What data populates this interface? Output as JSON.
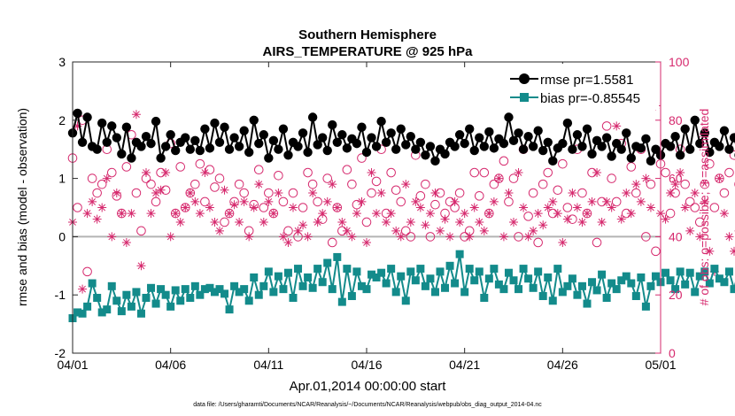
{
  "chart_data": {
    "type": "line",
    "title": [
      "Southern Hemisphere",
      "AIRS_TEMPERATURE @ 925 hPa"
    ],
    "xlabel": "Apr.01,2014 00:00:00 start",
    "ylabel_left": "rmse and bias (model - observation)",
    "ylabel_right": "# of obs: o=possible; ∗=assimilated",
    "footnote": "data file: /Users/gharamti/Documents/NCAR/Reanalysis/~/Documents/NCAR/Reanalysis/webpub/obs_diag_output_2014-04.nc",
    "x_ticks": [
      "04/01",
      "04/06",
      "04/11",
      "04/16",
      "04/21",
      "04/26",
      "05/01"
    ],
    "x_range_days": [
      0,
      30
    ],
    "ylim_left": [
      -2,
      3
    ],
    "y_ticks_left": [
      "-2",
      "-1",
      "0",
      "1",
      "2",
      "3"
    ],
    "ylim_right": [
      0,
      100
    ],
    "y_ticks_right": [
      "0",
      "20",
      "40",
      "60",
      "80",
      "100"
    ],
    "zero_line": 0,
    "legend": [
      "rmse pr=1.5581",
      "bias pr=-0.85545"
    ],
    "x_step_days": 0.25,
    "series": [
      {
        "name": "rmse pr=1.5581",
        "axis": "left",
        "color": "#000000",
        "marker": "circle",
        "values": [
          1.78,
          2.12,
          1.62,
          2.05,
          1.55,
          1.5,
          1.95,
          1.62,
          1.9,
          1.7,
          1.42,
          1.88,
          1.35,
          1.62,
          1.55,
          1.72,
          1.6,
          1.98,
          1.35,
          1.55,
          1.75,
          1.48,
          1.62,
          1.7,
          1.5,
          1.65,
          1.48,
          1.85,
          1.52,
          1.95,
          1.62,
          1.88,
          1.5,
          1.7,
          1.55,
          1.82,
          1.45,
          2.0,
          1.6,
          1.75,
          1.35,
          1.65,
          1.5,
          1.85,
          1.4,
          1.62,
          1.55,
          1.78,
          1.45,
          2.05,
          1.58,
          1.7,
          1.48,
          1.92,
          1.62,
          1.75,
          1.52,
          1.68,
          1.6,
          1.88,
          1.45,
          1.7,
          1.55,
          1.98,
          1.62,
          1.78,
          1.5,
          1.85,
          1.58,
          1.72,
          1.5,
          1.62,
          1.4,
          1.55,
          1.3,
          1.5,
          1.42,
          1.62,
          1.55,
          1.75,
          1.6,
          1.85,
          1.48,
          1.7,
          1.55,
          1.8,
          1.52,
          1.68,
          1.6,
          2.05,
          1.65,
          1.78,
          1.5,
          1.72,
          1.55,
          1.82,
          1.48,
          1.62,
          1.3,
          1.52,
          1.6,
          1.95,
          1.5,
          1.75,
          1.55,
          1.85,
          1.42,
          1.65,
          1.55,
          1.7,
          1.38,
          1.6,
          1.5,
          1.78,
          1.35,
          1.55,
          1.52,
          1.68,
          1.3,
          1.5,
          1.4,
          1.6,
          1.55,
          1.72,
          1.4,
          1.85,
          1.5,
          2.0,
          1.6,
          1.78,
          1.45,
          1.62,
          1.55,
          1.82,
          1.5,
          1.7,
          1.4,
          1.88,
          1.55,
          2.1,
          1.6,
          1.75,
          1.5,
          1.62,
          1.35,
          1.5,
          1.42,
          1.72,
          1.55,
          1.6,
          1.38,
          1.5,
          1.45,
          1.62,
          1.35,
          1.45,
          1.5,
          1.65,
          1.25,
          1.42,
          1.3,
          1.5,
          1.05,
          1.4,
          1.05,
          1.25,
          1.45,
          1.55,
          1.35,
          1.62,
          1.08,
          1.48,
          1.75,
          1.8,
          1.42,
          1.65,
          1.55,
          1.4,
          1.35
        ]
      },
      {
        "name": "bias pr=-0.85545",
        "axis": "left",
        "color": "#138b8b",
        "marker": "square",
        "values": [
          -1.4,
          -1.3,
          -1.32,
          -1.2,
          -0.8,
          -1.05,
          -1.3,
          -1.25,
          -0.85,
          -1.1,
          -1.28,
          -1.0,
          -1.2,
          -0.95,
          -1.32,
          -1.05,
          -0.88,
          -1.15,
          -0.9,
          -1.0,
          -1.2,
          -0.92,
          -1.1,
          -0.9,
          -1.05,
          -0.85,
          -1.0,
          -0.9,
          -0.88,
          -0.95,
          -0.9,
          -0.98,
          -1.25,
          -0.85,
          -0.95,
          -0.9,
          -1.1,
          -0.7,
          -1.0,
          -0.85,
          -0.6,
          -0.95,
          -0.68,
          -0.9,
          -0.62,
          -1.05,
          -0.55,
          -0.85,
          -0.7,
          -0.88,
          -0.55,
          -0.78,
          -0.45,
          -0.9,
          -0.35,
          -1.12,
          -0.55,
          -1.02,
          -0.6,
          -0.85,
          -0.9,
          -0.65,
          -0.7,
          -0.62,
          -0.8,
          -0.55,
          -0.95,
          -0.68,
          -1.1,
          -0.6,
          -0.75,
          -0.55,
          -0.85,
          -0.72,
          -0.95,
          -0.6,
          -0.88,
          -0.5,
          -0.8,
          -0.3,
          -0.95,
          -0.55,
          -0.75,
          -0.6,
          -1.05,
          -0.72,
          -0.55,
          -0.82,
          -0.9,
          -0.62,
          -0.75,
          -0.9,
          -0.55,
          -0.72,
          -0.88,
          -0.6,
          -1.02,
          -0.7,
          -1.1,
          -0.55,
          -0.95,
          -0.85,
          -0.72,
          -1.0,
          -0.85,
          -1.15,
          -0.78,
          -0.92,
          -0.65,
          -1.05,
          -0.8,
          -0.9,
          -0.75,
          -0.68,
          -0.8,
          -1.02,
          -0.7,
          -1.2,
          -0.85,
          -0.68,
          -0.78,
          -0.62,
          -0.75,
          -0.9,
          -0.6,
          -0.82,
          -0.62,
          -0.95,
          -0.68,
          -0.6,
          -0.8,
          -0.55,
          -0.72,
          -0.78,
          -0.6,
          -0.9,
          -0.55,
          -0.7,
          -0.62,
          -0.55,
          -0.85,
          -0.6,
          -1.05,
          -0.72,
          -1.2,
          -1.68,
          -0.9,
          -0.75,
          -0.62,
          -0.82,
          -0.58,
          -0.85,
          -0.55,
          -1.1,
          -0.7,
          -0.9,
          -0.62,
          -1.02,
          -0.75,
          -0.55,
          -0.82,
          -0.68,
          -1.1,
          -0.78,
          -0.92,
          -0.6,
          -0.48,
          -0.85,
          -0.42,
          -0.7,
          -0.45,
          -0.62,
          -0.42,
          -0.58,
          -0.88,
          -0.72,
          -0.5,
          -0.62,
          -0.45,
          -0.82,
          -0.28,
          -0.6,
          -0.18,
          -0.88,
          -0.4
        ]
      },
      {
        "name": "obs possible",
        "axis": "right",
        "color": "#d62a6e",
        "marker": "open-circle",
        "values": [
          67,
          50,
          80,
          28,
          60,
          55,
          58,
          70,
          62,
          54,
          48,
          64,
          75,
          55,
          42,
          60,
          58,
          52,
          62,
          56,
          72,
          48,
          64,
          50,
          55,
          58,
          65,
          52,
          63,
          57,
          60,
          45,
          48,
          52,
          58,
          55,
          42,
          51,
          63,
          50,
          55,
          48,
          61,
          52,
          42,
          55,
          40,
          50,
          62,
          58,
          52,
          46,
          60,
          38,
          50,
          42,
          63,
          58,
          51,
          67,
          45,
          55,
          59,
          70,
          48,
          62,
          56,
          52,
          42,
          40,
          68,
          54,
          58,
          40,
          51,
          55,
          48,
          52,
          50,
          55,
          40,
          42,
          62,
          54,
          62,
          48,
          58,
          60,
          66,
          52,
          60,
          40,
          70,
          47,
          55,
          38,
          58,
          62,
          48,
          56,
          65,
          50,
          46,
          70,
          55,
          48,
          62,
          38,
          52,
          78,
          60,
          52,
          72,
          48,
          64,
          55,
          70,
          40,
          58,
          35,
          65,
          62,
          48,
          55,
          70,
          58,
          52,
          50,
          45,
          58,
          65,
          50,
          60,
          55,
          62,
          68,
          58,
          40,
          62,
          48,
          68,
          45,
          62,
          55,
          72,
          48,
          66,
          60,
          65,
          58,
          70,
          52,
          62,
          55,
          65,
          58,
          60,
          45,
          65,
          52,
          50,
          42,
          62,
          48,
          55,
          30,
          58,
          62,
          48,
          55,
          30,
          42,
          60,
          48,
          53,
          65,
          50,
          58,
          0
        ]
      },
      {
        "name": "obs assimilated",
        "axis": "right",
        "color": "#d62a6e",
        "marker": "asterisk",
        "values": [
          45,
          78,
          22,
          48,
          52,
          46,
          50,
          60,
          40,
          55,
          48,
          38,
          48,
          82,
          30,
          62,
          48,
          55,
          56,
          62,
          40,
          48,
          45,
          50,
          55,
          52,
          48,
          62,
          50,
          45,
          42,
          56,
          48,
          51,
          45,
          52,
          40,
          50,
          58,
          45,
          52,
          48,
          55,
          40,
          38,
          50,
          42,
          44,
          40,
          55,
          45,
          48,
          52,
          58,
          50,
          45,
          42,
          40,
          48,
          52,
          38,
          62,
          48,
          55,
          45,
          48,
          42,
          40,
          58,
          45,
          52,
          50,
          44,
          48,
          55,
          42,
          46,
          40,
          52,
          45,
          48,
          40,
          50,
          45,
          42,
          48,
          52,
          60,
          40,
          55,
          45,
          62,
          50,
          40,
          42,
          48,
          44,
          50,
          52,
          48,
          38,
          46,
          55,
          50,
          45,
          48,
          52,
          62,
          45,
          52,
          50,
          78,
          46,
          55,
          48,
          58,
          52,
          60,
          50,
          85,
          48,
          46,
          55,
          58,
          62,
          50,
          42,
          55,
          40,
          52,
          35,
          28,
          60,
          48,
          40,
          35,
          42,
          55,
          38,
          50,
          45,
          48,
          42,
          38,
          56,
          40,
          44,
          46,
          38,
          42,
          58,
          40,
          44,
          30,
          48,
          58,
          40,
          46,
          52,
          44,
          40,
          42,
          55,
          48,
          60,
          40,
          50,
          44,
          45,
          30,
          44,
          38,
          50,
          42,
          40,
          48,
          46,
          48,
          0
        ]
      }
    ]
  }
}
